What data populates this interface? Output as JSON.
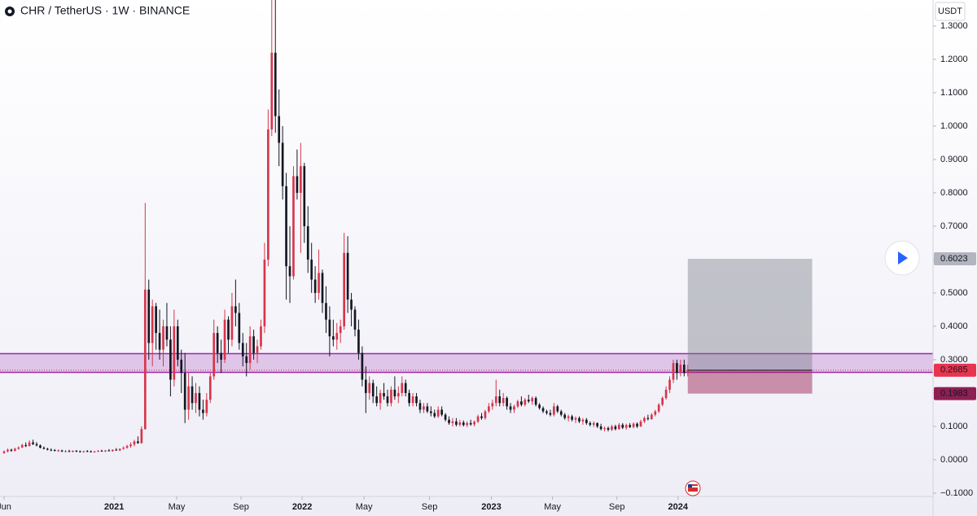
{
  "chart_data": {
    "type": "candlestick",
    "title": "CHR / TetherUS · 1W · BINANCE",
    "currency": "USDT",
    "up_color": "#d7354b",
    "down_color": "#131722",
    "xlim": [
      -1.13,
      256.8
    ],
    "ylim": [
      -0.11,
      1.378
    ],
    "xticks": [
      {
        "value": 0,
        "label": "Jun"
      },
      {
        "value": 30.4,
        "label": "2021"
      },
      {
        "value": 47.7,
        "label": "May"
      },
      {
        "value": 65.5,
        "label": "Sep"
      },
      {
        "value": 82.4,
        "label": "2022"
      },
      {
        "value": 99.5,
        "label": "May"
      },
      {
        "value": 117.6,
        "label": "Sep"
      },
      {
        "value": 134.7,
        "label": "2023"
      },
      {
        "value": 151.6,
        "label": "May"
      },
      {
        "value": 169.4,
        "label": "Sep"
      },
      {
        "value": 186.3,
        "label": "2024"
      }
    ],
    "yticks": [
      {
        "value": 1.3,
        "label": "1.3000"
      },
      {
        "value": 1.2,
        "label": "1.2000"
      },
      {
        "value": 1.1,
        "label": "1.1000"
      },
      {
        "value": 1.0,
        "label": "1.0000"
      },
      {
        "value": 0.9,
        "label": "0.9000"
      },
      {
        "value": 0.8,
        "label": "0.8000"
      },
      {
        "value": 0.7,
        "label": "0.7000"
      },
      {
        "value": 0.6,
        "label": "0.6000"
      },
      {
        "value": 0.5,
        "label": "0.5000"
      },
      {
        "value": 0.4,
        "label": "0.4000"
      },
      {
        "value": 0.3,
        "label": "0.3000"
      },
      {
        "value": 0.2,
        "label": "0.2000"
      },
      {
        "value": 0.1,
        "label": "0.1000"
      },
      {
        "value": 0,
        "label": "0.0000"
      },
      {
        "value": -0.1,
        "label": "−0.1000"
      }
    ],
    "zone": {
      "low": 0.262,
      "high": 0.318,
      "color": "#9c27b0"
    },
    "position": {
      "start": 189,
      "end": 223.4,
      "target": 0.6023,
      "entry": 0.2685,
      "stop": 0.1983
    },
    "candles": [
      [
        0.02,
        0.028,
        0.018,
        0.025
      ],
      [
        0.025,
        0.034,
        0.022,
        0.03
      ],
      [
        0.03,
        0.033,
        0.024,
        0.027
      ],
      [
        0.027,
        0.036,
        0.025,
        0.033
      ],
      [
        0.033,
        0.04,
        0.03,
        0.037
      ],
      [
        0.037,
        0.048,
        0.035,
        0.044
      ],
      [
        0.044,
        0.052,
        0.038,
        0.041
      ],
      [
        0.041,
        0.058,
        0.04,
        0.052
      ],
      [
        0.052,
        0.06,
        0.044,
        0.047
      ],
      [
        0.047,
        0.053,
        0.04,
        0.043
      ],
      [
        0.043,
        0.046,
        0.034,
        0.036
      ],
      [
        0.036,
        0.04,
        0.031,
        0.033
      ],
      [
        0.033,
        0.036,
        0.028,
        0.03
      ],
      [
        0.03,
        0.034,
        0.026,
        0.029
      ],
      [
        0.029,
        0.032,
        0.025,
        0.027
      ],
      [
        0.027,
        0.031,
        0.024,
        0.028
      ],
      [
        0.028,
        0.03,
        0.023,
        0.025
      ],
      [
        0.025,
        0.029,
        0.022,
        0.026
      ],
      [
        0.026,
        0.03,
        0.023,
        0.024
      ],
      [
        0.024,
        0.028,
        0.022,
        0.027
      ],
      [
        0.027,
        0.029,
        0.023,
        0.025
      ],
      [
        0.025,
        0.028,
        0.022,
        0.024
      ],
      [
        0.024,
        0.027,
        0.021,
        0.026
      ],
      [
        0.026,
        0.029,
        0.023,
        0.025
      ],
      [
        0.025,
        0.028,
        0.022,
        0.023
      ],
      [
        0.023,
        0.027,
        0.021,
        0.025
      ],
      [
        0.025,
        0.029,
        0.023,
        0.027
      ],
      [
        0.027,
        0.03,
        0.024,
        0.025
      ],
      [
        0.025,
        0.029,
        0.023,
        0.028
      ],
      [
        0.028,
        0.032,
        0.025,
        0.026
      ],
      [
        0.026,
        0.031,
        0.024,
        0.03
      ],
      [
        0.03,
        0.035,
        0.027,
        0.028
      ],
      [
        0.028,
        0.034,
        0.026,
        0.033
      ],
      [
        0.033,
        0.04,
        0.03,
        0.036
      ],
      [
        0.036,
        0.045,
        0.033,
        0.041
      ],
      [
        0.041,
        0.052,
        0.036,
        0.046
      ],
      [
        0.046,
        0.06,
        0.04,
        0.055
      ],
      [
        0.055,
        0.07,
        0.048,
        0.05
      ],
      [
        0.05,
        0.1,
        0.048,
        0.092
      ],
      [
        0.092,
        0.77,
        0.09,
        0.51
      ],
      [
        0.51,
        0.54,
        0.3,
        0.35
      ],
      [
        0.35,
        0.48,
        0.28,
        0.46
      ],
      [
        0.46,
        0.47,
        0.33,
        0.38
      ],
      [
        0.38,
        0.45,
        0.3,
        0.33
      ],
      [
        0.33,
        0.42,
        0.28,
        0.4
      ],
      [
        0.4,
        0.47,
        0.34,
        0.36
      ],
      [
        0.36,
        0.4,
        0.19,
        0.24
      ],
      [
        0.24,
        0.45,
        0.22,
        0.4
      ],
      [
        0.4,
        0.42,
        0.28,
        0.3
      ],
      [
        0.3,
        0.33,
        0.2,
        0.26
      ],
      [
        0.26,
        0.32,
        0.11,
        0.15
      ],
      [
        0.15,
        0.26,
        0.12,
        0.22
      ],
      [
        0.22,
        0.25,
        0.15,
        0.17
      ],
      [
        0.17,
        0.23,
        0.14,
        0.2
      ],
      [
        0.2,
        0.22,
        0.13,
        0.15
      ],
      [
        0.15,
        0.18,
        0.12,
        0.14
      ],
      [
        0.14,
        0.2,
        0.13,
        0.18
      ],
      [
        0.18,
        0.26,
        0.17,
        0.25
      ],
      [
        0.25,
        0.42,
        0.24,
        0.38
      ],
      [
        0.38,
        0.4,
        0.29,
        0.32
      ],
      [
        0.32,
        0.36,
        0.26,
        0.3
      ],
      [
        0.3,
        0.45,
        0.29,
        0.42
      ],
      [
        0.42,
        0.43,
        0.32,
        0.36
      ],
      [
        0.36,
        0.5,
        0.34,
        0.46
      ],
      [
        0.46,
        0.54,
        0.4,
        0.44
      ],
      [
        0.44,
        0.47,
        0.33,
        0.35
      ],
      [
        0.35,
        0.38,
        0.28,
        0.31
      ],
      [
        0.31,
        0.35,
        0.25,
        0.29
      ],
      [
        0.29,
        0.4,
        0.27,
        0.37
      ],
      [
        0.37,
        0.39,
        0.3,
        0.32
      ],
      [
        0.32,
        0.36,
        0.29,
        0.34
      ],
      [
        0.34,
        0.42,
        0.33,
        0.4
      ],
      [
        0.4,
        0.65,
        0.38,
        0.6
      ],
      [
        0.6,
        1.05,
        0.58,
        0.99
      ],
      [
        0.99,
        1.38,
        0.97,
        1.22
      ],
      [
        1.22,
        1.38,
        0.98,
        1.03
      ],
      [
        1.03,
        1.11,
        0.88,
        0.95
      ],
      [
        0.95,
        1.0,
        0.78,
        0.82
      ],
      [
        0.82,
        0.86,
        0.48,
        0.58
      ],
      [
        0.58,
        0.7,
        0.47,
        0.55
      ],
      [
        0.55,
        0.88,
        0.54,
        0.85
      ],
      [
        0.85,
        0.93,
        0.78,
        0.8
      ],
      [
        0.8,
        0.95,
        0.62,
        0.88
      ],
      [
        0.88,
        0.89,
        0.65,
        0.7
      ],
      [
        0.7,
        0.76,
        0.56,
        0.6
      ],
      [
        0.6,
        0.65,
        0.5,
        0.54
      ],
      [
        0.54,
        0.58,
        0.47,
        0.5
      ],
      [
        0.5,
        0.63,
        0.48,
        0.56
      ],
      [
        0.56,
        0.57,
        0.44,
        0.47
      ],
      [
        0.47,
        0.52,
        0.38,
        0.42
      ],
      [
        0.42,
        0.46,
        0.31,
        0.37
      ],
      [
        0.37,
        0.42,
        0.34,
        0.36
      ],
      [
        0.36,
        0.41,
        0.33,
        0.38
      ],
      [
        0.38,
        0.42,
        0.35,
        0.4
      ],
      [
        0.4,
        0.68,
        0.39,
        0.62
      ],
      [
        0.62,
        0.67,
        0.44,
        0.48
      ],
      [
        0.48,
        0.5,
        0.4,
        0.45
      ],
      [
        0.45,
        0.46,
        0.37,
        0.39
      ],
      [
        0.39,
        0.42,
        0.3,
        0.32
      ],
      [
        0.32,
        0.34,
        0.22,
        0.24
      ],
      [
        0.24,
        0.28,
        0.14,
        0.2
      ],
      [
        0.2,
        0.25,
        0.18,
        0.23
      ],
      [
        0.23,
        0.24,
        0.17,
        0.19
      ],
      [
        0.19,
        0.22,
        0.16,
        0.17
      ],
      [
        0.17,
        0.21,
        0.15,
        0.2
      ],
      [
        0.2,
        0.23,
        0.18,
        0.19
      ],
      [
        0.19,
        0.21,
        0.16,
        0.17
      ],
      [
        0.17,
        0.22,
        0.16,
        0.21
      ],
      [
        0.21,
        0.25,
        0.18,
        0.19
      ],
      [
        0.19,
        0.22,
        0.17,
        0.2
      ],
      [
        0.2,
        0.25,
        0.19,
        0.23
      ],
      [
        0.23,
        0.24,
        0.19,
        0.2
      ],
      [
        0.2,
        0.21,
        0.16,
        0.17
      ],
      [
        0.17,
        0.2,
        0.16,
        0.19
      ],
      [
        0.19,
        0.2,
        0.16,
        0.17
      ],
      [
        0.17,
        0.18,
        0.14,
        0.15
      ],
      [
        0.15,
        0.17,
        0.14,
        0.16
      ],
      [
        0.16,
        0.17,
        0.14,
        0.145
      ],
      [
        0.145,
        0.16,
        0.13,
        0.14
      ],
      [
        0.14,
        0.15,
        0.125,
        0.13
      ],
      [
        0.13,
        0.16,
        0.125,
        0.15
      ],
      [
        0.15,
        0.16,
        0.13,
        0.135
      ],
      [
        0.135,
        0.14,
        0.115,
        0.12
      ],
      [
        0.12,
        0.13,
        0.105,
        0.11
      ],
      [
        0.11,
        0.125,
        0.1,
        0.115
      ],
      [
        0.115,
        0.125,
        0.1,
        0.105
      ],
      [
        0.105,
        0.12,
        0.1,
        0.112
      ],
      [
        0.112,
        0.118,
        0.1,
        0.104
      ],
      [
        0.104,
        0.115,
        0.098,
        0.11
      ],
      [
        0.11,
        0.12,
        0.102,
        0.106
      ],
      [
        0.106,
        0.118,
        0.1,
        0.114
      ],
      [
        0.114,
        0.135,
        0.11,
        0.13
      ],
      [
        0.13,
        0.14,
        0.12,
        0.125
      ],
      [
        0.125,
        0.15,
        0.12,
        0.145
      ],
      [
        0.145,
        0.17,
        0.14,
        0.16
      ],
      [
        0.16,
        0.18,
        0.15,
        0.17
      ],
      [
        0.17,
        0.24,
        0.16,
        0.19
      ],
      [
        0.19,
        0.21,
        0.16,
        0.17
      ],
      [
        0.17,
        0.2,
        0.16,
        0.185
      ],
      [
        0.185,
        0.19,
        0.15,
        0.16
      ],
      [
        0.16,
        0.17,
        0.14,
        0.15
      ],
      [
        0.15,
        0.165,
        0.14,
        0.16
      ],
      [
        0.16,
        0.18,
        0.155,
        0.175
      ],
      [
        0.175,
        0.19,
        0.16,
        0.165
      ],
      [
        0.165,
        0.185,
        0.16,
        0.18
      ],
      [
        0.18,
        0.195,
        0.17,
        0.175
      ],
      [
        0.175,
        0.19,
        0.165,
        0.185
      ],
      [
        0.185,
        0.19,
        0.16,
        0.165
      ],
      [
        0.165,
        0.17,
        0.15,
        0.155
      ],
      [
        0.155,
        0.16,
        0.14,
        0.145
      ],
      [
        0.145,
        0.15,
        0.135,
        0.14
      ],
      [
        0.14,
        0.15,
        0.13,
        0.135
      ],
      [
        0.135,
        0.17,
        0.13,
        0.16
      ],
      [
        0.16,
        0.165,
        0.14,
        0.145
      ],
      [
        0.145,
        0.15,
        0.13,
        0.135
      ],
      [
        0.135,
        0.14,
        0.12,
        0.125
      ],
      [
        0.125,
        0.135,
        0.115,
        0.13
      ],
      [
        0.13,
        0.135,
        0.115,
        0.12
      ],
      [
        0.12,
        0.13,
        0.11,
        0.125
      ],
      [
        0.125,
        0.13,
        0.11,
        0.115
      ],
      [
        0.115,
        0.125,
        0.105,
        0.12
      ],
      [
        0.12,
        0.125,
        0.105,
        0.11
      ],
      [
        0.11,
        0.115,
        0.1,
        0.105
      ],
      [
        0.105,
        0.115,
        0.098,
        0.11
      ],
      [
        0.11,
        0.112,
        0.095,
        0.1
      ],
      [
        0.1,
        0.108,
        0.088,
        0.092
      ],
      [
        0.092,
        0.1,
        0.085,
        0.095
      ],
      [
        0.095,
        0.1,
        0.085,
        0.09
      ],
      [
        0.09,
        0.105,
        0.086,
        0.1
      ],
      [
        0.1,
        0.105,
        0.088,
        0.092
      ],
      [
        0.092,
        0.11,
        0.09,
        0.105
      ],
      [
        0.105,
        0.11,
        0.092,
        0.096
      ],
      [
        0.096,
        0.108,
        0.09,
        0.104
      ],
      [
        0.104,
        0.11,
        0.095,
        0.098
      ],
      [
        0.098,
        0.112,
        0.094,
        0.108
      ],
      [
        0.108,
        0.112,
        0.095,
        0.1
      ],
      [
        0.1,
        0.12,
        0.098,
        0.115
      ],
      [
        0.115,
        0.13,
        0.11,
        0.125
      ],
      [
        0.125,
        0.135,
        0.118,
        0.122
      ],
      [
        0.122,
        0.14,
        0.12,
        0.135
      ],
      [
        0.135,
        0.15,
        0.13,
        0.145
      ],
      [
        0.145,
        0.17,
        0.14,
        0.165
      ],
      [
        0.165,
        0.19,
        0.16,
        0.185
      ],
      [
        0.185,
        0.22,
        0.18,
        0.21
      ],
      [
        0.21,
        0.25,
        0.2,
        0.24
      ],
      [
        0.24,
        0.3,
        0.23,
        0.29
      ],
      [
        0.29,
        0.3,
        0.24,
        0.26
      ],
      [
        0.26,
        0.3,
        0.25,
        0.285
      ],
      [
        0.285,
        0.3,
        0.25,
        0.26
      ],
      [
        0.26,
        0.285,
        0.25,
        0.2685
      ]
    ]
  }
}
